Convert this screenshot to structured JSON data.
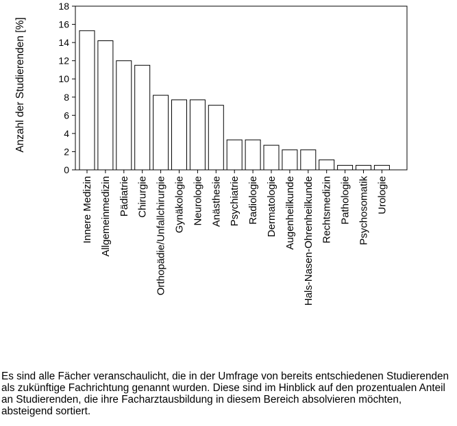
{
  "chart_data": {
    "type": "bar",
    "title": "",
    "xlabel": "",
    "ylabel": "Anzahl der Studierenden [%]",
    "ylim": [
      0,
      18
    ],
    "yticks": [
      0,
      2,
      4,
      6,
      8,
      10,
      12,
      14,
      16,
      18
    ],
    "grid": false,
    "legend": "none",
    "bar_fill": "#ffffff",
    "bar_stroke": "#000000",
    "categories": [
      "Innere Medizin",
      "Allgemeinmedizin",
      "Pädiatrie",
      "Chirurgie",
      "Orthopädie/Unfallchirurgie",
      "Gynäkologie",
      "Neurologie",
      "Anästhesie",
      "Psychiatrie",
      "Radiologie",
      "Dermatologie",
      "Augenheilkunde",
      "Hals-Nasen-Ohrenheilkunde",
      "Rechtsmedizin",
      "Pathologie",
      "Psychosomatik",
      "Urologie"
    ],
    "values": [
      15.3,
      14.2,
      12.0,
      11.5,
      8.2,
      7.7,
      7.7,
      7.1,
      3.3,
      3.3,
      2.7,
      2.2,
      2.2,
      1.1,
      0.5,
      0.5,
      0.5
    ]
  },
  "caption": "Es sind alle Fächer veranschaulicht, die in der Umfrage von bereits entschiedenen Studierenden als zukünftige Fachrichtung genannt wurden. Diese sind im Hinblick auf den prozentualen Anteil an Studierenden, die ihre Facharztausbildung in diesem Bereich absolvieren möchten, absteigend sortiert."
}
